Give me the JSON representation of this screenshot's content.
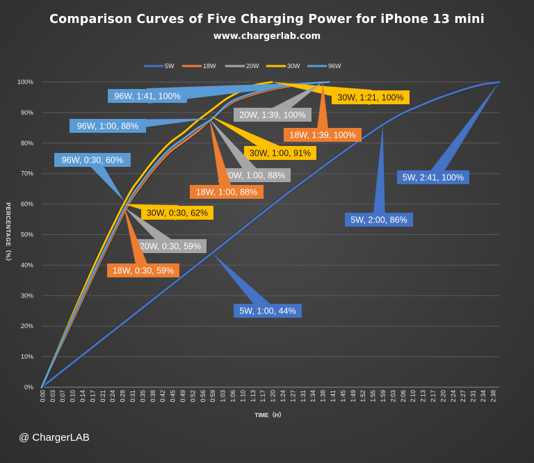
{
  "colors": {
    "5W": "#4472c4",
    "18W": "#ed7d31",
    "20W": "#a5a5a5",
    "30W": "#ffc000",
    "96W": "#5b9bd5"
  },
  "chart_data": {
    "type": "line",
    "title": "Comparison Curves of Five Charging Power for iPhone 13 mini",
    "subtitle": "www.chargerlab.com",
    "xlabel": "TIME（H）",
    "ylabel": "PERCENTAGE（%）",
    "ylim": [
      0,
      100
    ],
    "xlim_minutes": [
      0,
      161
    ],
    "grid": true,
    "legend_position": "top",
    "x_tick_labels": [
      "0:00",
      "0:03",
      "0:07",
      "0:10",
      "0:14",
      "0:17",
      "0:21",
      "0:24",
      "0:28",
      "0:31",
      "0:35",
      "0:38",
      "0:42",
      "0:45",
      "0:49",
      "0:52",
      "0:56",
      "0:59",
      "1:03",
      "1:06",
      "1:10",
      "1:13",
      "1:17",
      "1:20",
      "1:24",
      "1:27",
      "1:31",
      "1:34",
      "1:38",
      "1:41",
      "1:45",
      "1:49",
      "1:52",
      "1:55",
      "1:59",
      "2:03",
      "2:06",
      "2:10",
      "2:13",
      "2:17",
      "2:20",
      "2:24",
      "2:27",
      "2:31",
      "2:34",
      "2:38"
    ],
    "y_tick_labels": [
      "0%",
      "10%",
      "20%",
      "30%",
      "40%",
      "50%",
      "60%",
      "70%",
      "80%",
      "90%",
      "100%"
    ],
    "series": [
      {
        "name": "5W",
        "minutes": [
          0,
          30,
          60,
          90,
          120,
          135,
          145,
          150,
          155,
          161
        ],
        "values": [
          0,
          22,
          44,
          66,
          86,
          93,
          96.5,
          98,
          99.2,
          100
        ]
      },
      {
        "name": "18W",
        "minutes": [
          0,
          10,
          20,
          30,
          35,
          40,
          45,
          50,
          55,
          60,
          65,
          70,
          80,
          90,
          99
        ],
        "values": [
          0,
          20,
          40,
          59,
          66,
          72,
          77,
          80.5,
          84,
          88,
          92,
          94.5,
          97.3,
          99,
          100
        ]
      },
      {
        "name": "20W",
        "minutes": [
          0,
          10,
          20,
          30,
          35,
          40,
          45,
          50,
          55,
          60,
          65,
          70,
          80,
          90,
          99
        ],
        "values": [
          0,
          20,
          40,
          59,
          66,
          72,
          77,
          80.5,
          84,
          88,
          92,
          94.5,
          97.3,
          99,
          100
        ]
      },
      {
        "name": "30W",
        "minutes": [
          0,
          10,
          20,
          30,
          35,
          40,
          45,
          50,
          55,
          60,
          65,
          70,
          75,
          81
        ],
        "values": [
          0,
          22,
          43,
          62,
          69,
          75,
          80,
          83.5,
          87.5,
          91,
          94.5,
          97,
          99,
          100
        ]
      },
      {
        "name": "96W",
        "minutes": [
          0,
          10,
          20,
          30,
          35,
          40,
          45,
          50,
          55,
          60,
          65,
          70,
          80,
          90,
          101
        ],
        "values": [
          0,
          21,
          41,
          60,
          67,
          73,
          78,
          81.5,
          85,
          88,
          92.5,
          95,
          97.8,
          99.3,
          100
        ]
      }
    ],
    "annotations": [
      {
        "text": "96W, 1:41, 100%",
        "series": "96W"
      },
      {
        "text": "96W, 1:00, 88%",
        "series": "96W"
      },
      {
        "text": "96W, 0:30, 60%",
        "series": "96W"
      },
      {
        "text": "30W, 1:21, 100%",
        "series": "30W"
      },
      {
        "text": "30W, 1:00, 91%",
        "series": "30W"
      },
      {
        "text": "30W, 0:30, 62%",
        "series": "30W"
      },
      {
        "text": "20W, 1:39, 100%",
        "series": "20W"
      },
      {
        "text": "20W, 1:00, 88%",
        "series": "20W"
      },
      {
        "text": "20W, 0:30, 59%",
        "series": "20W"
      },
      {
        "text": "18W, 1:39, 100%",
        "series": "18W"
      },
      {
        "text": "18W, 1:00, 88%",
        "series": "18W"
      },
      {
        "text": "18W, 0:30, 59%",
        "series": "18W"
      },
      {
        "text": "5W, 2:41, 100%",
        "series": "5W"
      },
      {
        "text": "5W, 2:00, 86%",
        "series": "5W"
      },
      {
        "text": "5W, 1:00, 44%",
        "series": "5W"
      }
    ]
  },
  "watermark": "@ ChargerLAB"
}
